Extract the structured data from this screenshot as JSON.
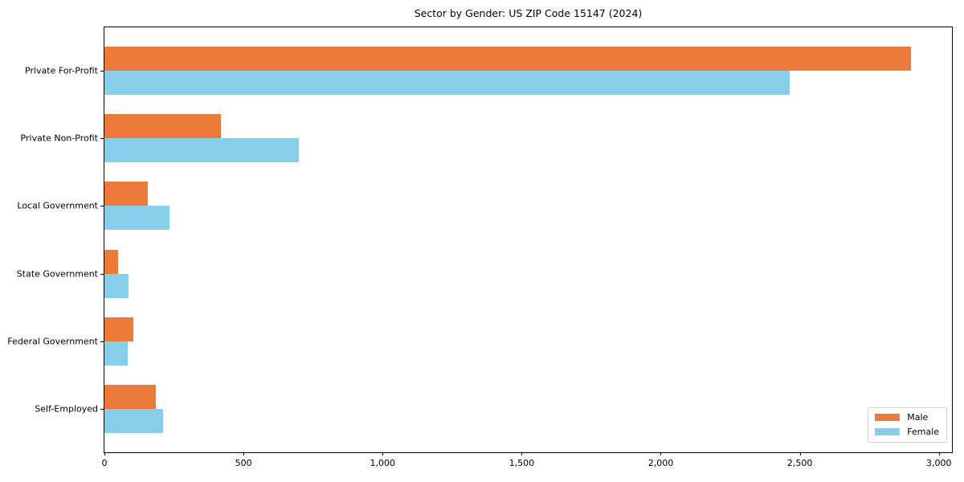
{
  "chart_data": {
    "type": "bar",
    "orientation": "horizontal",
    "title": "Sector by Gender: US ZIP Code 15147 (2024)",
    "categories": [
      "Private For-Profit",
      "Private Non-Profit",
      "Local Government",
      "State Government",
      "Federal Government",
      "Self-Employed"
    ],
    "series": [
      {
        "name": "Male",
        "color": "#EC7A3B",
        "values": [
          2900,
          420,
          155,
          50,
          105,
          185
        ]
      },
      {
        "name": "Female",
        "color": "#87CEEB",
        "values": [
          2465,
          700,
          235,
          87,
          85,
          212
        ]
      }
    ],
    "xlabel": "",
    "ylabel": "",
    "xlim": [
      0,
      3047
    ],
    "xticks": [
      0,
      500,
      1000,
      1500,
      2000,
      2500,
      3000
    ],
    "xtick_labels": [
      "0",
      "500",
      "1,000",
      "1,500",
      "2,000",
      "2,500",
      "3,000"
    ],
    "grid": false,
    "legend_position": "lower right",
    "background_color": "#ffffff",
    "text_color": "#000000"
  }
}
